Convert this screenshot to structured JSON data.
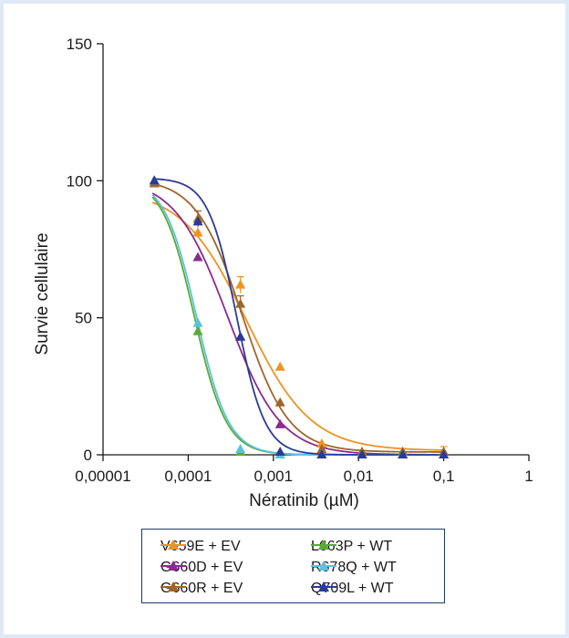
{
  "chart_data": {
    "type": "scatter",
    "xlabel": "Nératinib (µM)",
    "ylabel": "Survie cellulaire",
    "x_scale": "log",
    "xlim": [
      1e-05,
      1
    ],
    "ylim": [
      0,
      150
    ],
    "x_ticks": [
      "0,00001",
      "0,0001",
      "0,001",
      "0,01",
      "0,1",
      "1"
    ],
    "y_ticks": [
      "0",
      "50",
      "100",
      "150"
    ],
    "legend_placement": "bottom-center",
    "series": [
      {
        "name": "V659E + EV",
        "color": "#f0931e",
        "points": [
          [
            4e-05,
            100
          ],
          [
            0.00013,
            81
          ],
          [
            0.00041,
            62
          ],
          [
            0.0012,
            32
          ],
          [
            0.0037,
            4
          ],
          [
            0.011,
            1
          ],
          [
            0.033,
            1
          ],
          [
            0.1,
            1
          ]
        ],
        "fit": {
          "top": 97,
          "bottom": 1.5,
          "ic50": 0.00048,
          "hill": 1.15
        }
      },
      {
        "name": "G660D + EV",
        "color": "#8b2a8e",
        "points": [
          [
            4e-05,
            99
          ],
          [
            0.00013,
            72
          ],
          [
            0.00041,
            43
          ],
          [
            0.0012,
            11
          ],
          [
            0.0037,
            0
          ],
          [
            0.011,
            0
          ],
          [
            0.033,
            0
          ],
          [
            0.1,
            0
          ]
        ],
        "fit": {
          "top": 101,
          "bottom": 0,
          "ic50": 0.00029,
          "hill": 1.4
        }
      },
      {
        "name": "G660R + EV",
        "color": "#a0652a",
        "points": [
          [
            4e-05,
            99
          ],
          [
            0.00013,
            86
          ],
          [
            0.00041,
            55
          ],
          [
            0.0012,
            19
          ],
          [
            0.0037,
            2
          ],
          [
            0.011,
            1
          ],
          [
            0.033,
            1
          ],
          [
            0.1,
            1
          ]
        ],
        "fit": {
          "top": 101,
          "bottom": 1,
          "ic50": 0.00043,
          "hill": 1.6
        }
      },
      {
        "name": "L663P + WT",
        "color": "#5aaa3a",
        "points": [
          [
            4e-05,
            100
          ],
          [
            0.00013,
            45
          ],
          [
            0.00041,
            1
          ],
          [
            0.0012,
            0
          ],
          [
            0.0037,
            0
          ],
          [
            0.011,
            0
          ],
          [
            0.033,
            0
          ],
          [
            0.1,
            0
          ]
        ],
        "fit": {
          "top": 101,
          "bottom": 0,
          "ic50": 0.000118,
          "hill": 2.3
        }
      },
      {
        "name": "R678Q + WT",
        "color": "#5ac3d8",
        "points": [
          [
            4e-05,
            100
          ],
          [
            0.00013,
            48
          ],
          [
            0.00041,
            2
          ],
          [
            0.0012,
            0
          ],
          [
            0.0037,
            0
          ],
          [
            0.011,
            0
          ],
          [
            0.033,
            0
          ],
          [
            0.1,
            0
          ]
        ],
        "fit": {
          "top": 101,
          "bottom": 0,
          "ic50": 0.000125,
          "hill": 2.3
        }
      },
      {
        "name": "Q709L + WT",
        "color": "#2b3a9a",
        "points": [
          [
            4e-05,
            100
          ],
          [
            0.00013,
            85
          ],
          [
            0.00041,
            43
          ],
          [
            0.0012,
            1
          ],
          [
            0.0037,
            0
          ],
          [
            0.011,
            0
          ],
          [
            0.033,
            0
          ],
          [
            0.1,
            0
          ]
        ],
        "fit": {
          "top": 101,
          "bottom": 0,
          "ic50": 0.00037,
          "hill": 2.6
        }
      }
    ]
  }
}
